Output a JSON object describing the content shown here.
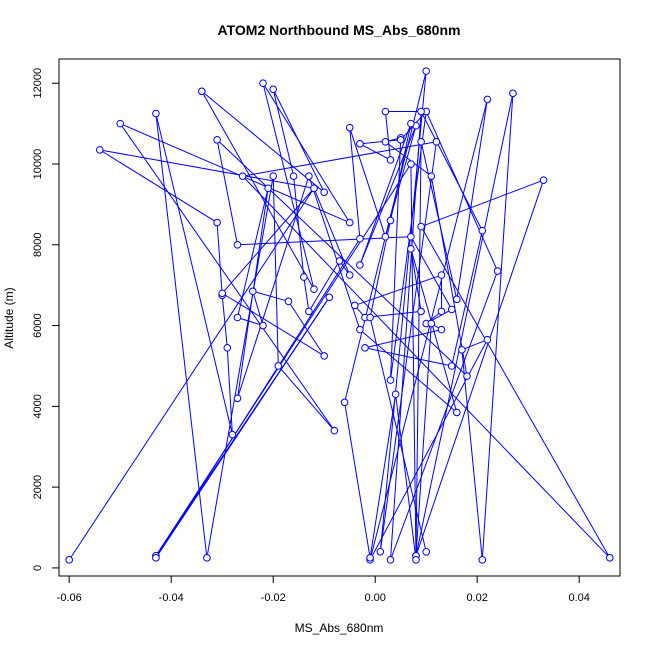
{
  "chart_data": {
    "type": "line",
    "title": "ATOM2 Northbound MS_Abs_680nm",
    "xlabel": "MS_Abs_680nm",
    "ylabel": "Altitude (m)",
    "xlim": [
      -0.062,
      0.048
    ],
    "ylim": [
      -200,
      12600
    ],
    "x_ticks": [
      -0.06,
      -0.04,
      -0.02,
      0.0,
      0.02,
      0.04
    ],
    "x_tick_labels": [
      "-0.06",
      "-0.04",
      "-0.02",
      "0.00",
      "0.02",
      "0.04"
    ],
    "y_ticks": [
      0,
      2000,
      4000,
      6000,
      8000,
      10000,
      12000
    ],
    "y_tick_labels": [
      "0",
      "2000",
      "4000",
      "6000",
      "8000",
      "10000",
      "12000"
    ],
    "grid": false,
    "series": [
      {
        "style": "both",
        "color": "#0000ff",
        "x": [
          -0.06,
          -0.012,
          -0.054,
          -0.031,
          -0.03,
          -0.029,
          -0.028,
          -0.043,
          -0.033,
          -0.02,
          -0.019,
          -0.008,
          -0.05,
          -0.005,
          -0.022,
          -0.012,
          -0.034,
          -0.01,
          -0.02,
          -0.016,
          -0.014,
          -0.013,
          -0.007,
          -0.005,
          -0.012,
          -0.03,
          -0.01,
          -0.017,
          -0.024,
          -0.022,
          -0.027,
          -0.021,
          -0.027,
          -0.013,
          -0.003,
          0.016,
          0.007,
          0.009,
          -0.002,
          -0.004,
          0.013,
          0.013,
          0.01,
          0.015,
          0.007,
          -0.027,
          -0.031,
          0.018,
          0.011,
          0.002,
          0.005,
          0.003,
          0.01,
          0.002,
          0.003,
          -0.003,
          0.005,
          0.01,
          0.024,
          0.003,
          0.009,
          0.021,
          0.015,
          -0.002,
          0.013,
          0.011,
          0.008,
          0.009,
          0.016,
          0.022,
          -0.001,
          0.022,
          0.017,
          0.021,
          0.027,
          0.008,
          0.033,
          0.009,
          0.046,
          -0.026,
          0.012,
          0.001,
          0.01,
          -0.006,
          -0.001,
          0.004,
          0.008,
          0.007,
          -0.043,
          -0.009,
          -0.043,
          -0.003,
          -0.005,
          0.002,
          0.008,
          -0.003,
          0.007,
          0.003,
          -0.001,
          0.01
        ],
        "y": [
          200,
          9400,
          10350,
          8550,
          6750,
          5450,
          3300,
          11250,
          250,
          9700,
          5000,
          3400,
          11000,
          8550,
          12000,
          6900,
          11800,
          9300,
          11850,
          9700,
          7200,
          6350,
          7600,
          7250,
          9400,
          6800,
          5250,
          6600,
          6850,
          6000,
          6200,
          9400,
          4200,
          9700,
          5900,
          3850,
          7900,
          6350,
          6200,
          6500,
          7250,
          6350,
          6050,
          6400,
          8200,
          8000,
          10600,
          4750,
          9700,
          10550,
          10650,
          4650,
          11300,
          11300,
          10100,
          10500,
          10600,
          11300,
          7350,
          200,
          11300,
          8350,
          5000,
          5450,
          5900,
          6050,
          300,
          10550,
          6650,
          11600,
          200,
          5650,
          5400,
          200,
          11750,
          300,
          9600,
          8450,
          250,
          9700,
          10550,
          400,
          12300,
          4100,
          250,
          4300,
          200,
          10000,
          300,
          6700,
          250,
          8150,
          10900,
          8200,
          10950,
          7500,
          11000,
          8600,
          6200,
          400
        ]
      }
    ]
  }
}
